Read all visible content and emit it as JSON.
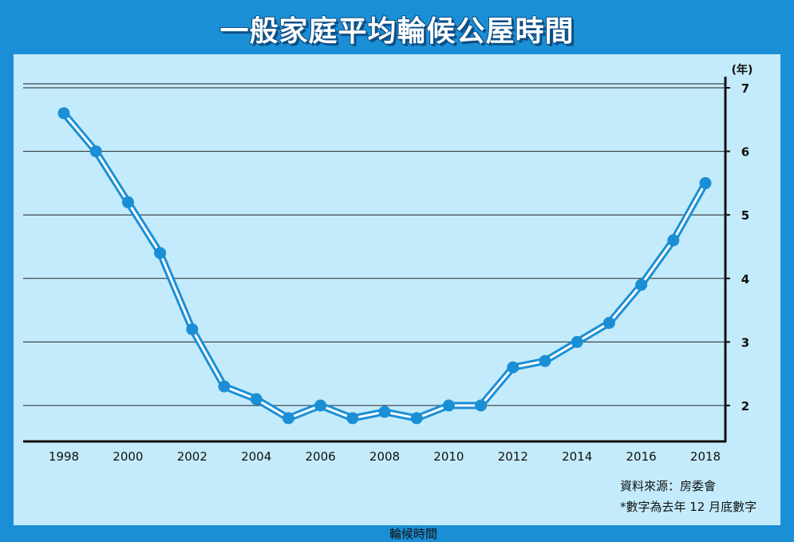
{
  "title": "一般家庭平均輪候公屋時間",
  "chart_data": {
    "type": "line",
    "title": "一般家庭平均輪候公屋時間",
    "unit_label": "(年)",
    "x": [
      1998,
      1999,
      2000,
      2001,
      2002,
      2003,
      2004,
      2005,
      2006,
      2007,
      2008,
      2009,
      2010,
      2011,
      2012,
      2013,
      2014,
      2015,
      2016,
      2017,
      2018
    ],
    "x_tick_labels": [
      "1998",
      "2000",
      "2002",
      "2004",
      "2006",
      "2008",
      "2010",
      "2012",
      "2014",
      "2016",
      "2018"
    ],
    "y_tick_labels": [
      "2",
      "3",
      "4",
      "5",
      "6",
      "7"
    ],
    "ylim": [
      1.5,
      7
    ],
    "grid": true,
    "y_axis_side": "right",
    "series": [
      {
        "name": "輪候時間",
        "values": [
          6.6,
          6.0,
          5.2,
          4.4,
          3.2,
          2.3,
          2.1,
          1.8,
          2.0,
          1.8,
          1.9,
          1.8,
          2.0,
          2.0,
          2.6,
          2.7,
          3.0,
          3.3,
          3.9,
          4.6,
          5.5
        ]
      }
    ],
    "legend_position": "bottom-center"
  },
  "colors": {
    "accent": "#1b8fd6",
    "panel": "#c4ebfc",
    "title_shadow": "#0b4f86"
  },
  "notes": {
    "source": "資料來源：房委會",
    "footnote": "*數字為去年 12 月底數字"
  }
}
